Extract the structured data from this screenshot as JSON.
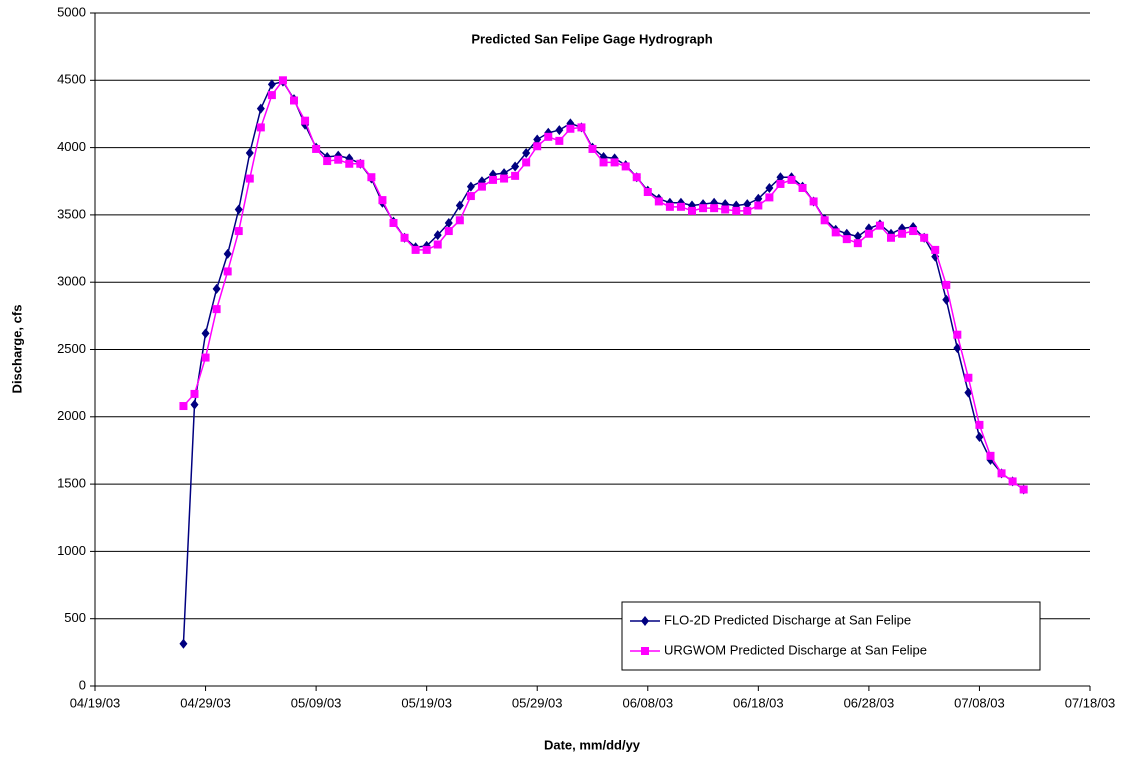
{
  "chart_data": {
    "type": "line",
    "title": "Predicted San Felipe Gage Hydrograph",
    "xlabel": "Date, mm/dd/yy",
    "ylabel": "Discharge, cfs",
    "x": [
      "04/27/03",
      "04/28/03",
      "04/29/03",
      "04/30/03",
      "05/01/03",
      "05/02/03",
      "05/03/03",
      "05/04/03",
      "05/05/03",
      "05/06/03",
      "05/07/03",
      "05/08/03",
      "05/09/03",
      "05/10/03",
      "05/11/03",
      "05/12/03",
      "05/13/03",
      "05/14/03",
      "05/15/03",
      "05/16/03",
      "05/17/03",
      "05/18/03",
      "05/19/03",
      "05/20/03",
      "05/21/03",
      "05/22/03",
      "05/23/03",
      "05/24/03",
      "05/25/03",
      "05/26/03",
      "05/27/03",
      "05/28/03",
      "05/29/03",
      "05/30/03",
      "05/31/03",
      "06/01/03",
      "06/02/03",
      "06/03/03",
      "06/04/03",
      "06/05/03",
      "06/06/03",
      "06/07/03",
      "06/08/03",
      "06/09/03",
      "06/10/03",
      "06/11/03",
      "06/12/03",
      "06/13/03",
      "06/14/03",
      "06/15/03",
      "06/16/03",
      "06/17/03",
      "06/18/03",
      "06/19/03",
      "06/20/03",
      "06/21/03",
      "06/22/03",
      "06/23/03",
      "06/24/03",
      "06/25/03",
      "06/26/03",
      "06/27/03",
      "06/28/03",
      "06/29/03",
      "06/30/03",
      "07/01/03",
      "07/02/03",
      "07/03/03",
      "07/04/03",
      "07/05/03",
      "07/06/03",
      "07/07/03",
      "07/08/03",
      "07/09/03",
      "07/10/03",
      "07/11/03",
      "07/12/03"
    ],
    "series": [
      {
        "name": "FLO-2D Predicted Discharge at San Felipe",
        "color": "#000080",
        "marker": "diamond",
        "values": [
          314,
          2090,
          2620,
          2950,
          3210,
          3540,
          3960,
          4290,
          4470,
          4490,
          4360,
          4170,
          4000,
          3930,
          3940,
          3920,
          3880,
          3770,
          3590,
          3450,
          3330,
          3260,
          3270,
          3350,
          3440,
          3570,
          3710,
          3750,
          3800,
          3810,
          3860,
          3960,
          4060,
          4110,
          4130,
          4180,
          4150,
          4000,
          3930,
          3920,
          3870,
          3780,
          3680,
          3620,
          3590,
          3590,
          3570,
          3580,
          3590,
          3580,
          3570,
          3580,
          3620,
          3700,
          3780,
          3780,
          3710,
          3600,
          3470,
          3390,
          3360,
          3340,
          3400,
          3430,
          3360,
          3400,
          3410,
          3330,
          3190,
          2870,
          2510,
          2180,
          1850,
          1680,
          1580,
          1520,
          1460
        ]
      },
      {
        "name": "URGWOM Predicted Discharge at San Felipe",
        "color": "#ff00ff",
        "marker": "square",
        "values": [
          2080,
          2170,
          2440,
          2800,
          3080,
          3380,
          3770,
          4150,
          4390,
          4500,
          4350,
          4200,
          3990,
          3900,
          3910,
          3880,
          3880,
          3780,
          3610,
          3440,
          3330,
          3240,
          3240,
          3280,
          3380,
          3460,
          3640,
          3710,
          3760,
          3770,
          3790,
          3890,
          4010,
          4080,
          4050,
          4140,
          4150,
          3990,
          3890,
          3890,
          3860,
          3780,
          3670,
          3600,
          3560,
          3560,
          3530,
          3550,
          3550,
          3540,
          3530,
          3530,
          3570,
          3630,
          3730,
          3760,
          3700,
          3600,
          3460,
          3370,
          3320,
          3290,
          3360,
          3420,
          3330,
          3360,
          3380,
          3330,
          3240,
          2980,
          2610,
          2290,
          1940,
          1710,
          1580,
          1520,
          1460
        ]
      }
    ],
    "xlim": [
      "04/19/03",
      "07/18/03"
    ],
    "xticks": [
      "04/19/03",
      "04/29/03",
      "05/09/03",
      "05/19/03",
      "05/29/03",
      "06/08/03",
      "06/18/03",
      "06/28/03",
      "07/08/03",
      "07/18/03"
    ],
    "ylim": [
      0,
      5000
    ],
    "yticks": [
      0,
      500,
      1000,
      1500,
      2000,
      2500,
      3000,
      3500,
      4000,
      4500,
      5000
    ],
    "grid": true,
    "legend": "lower right"
  }
}
